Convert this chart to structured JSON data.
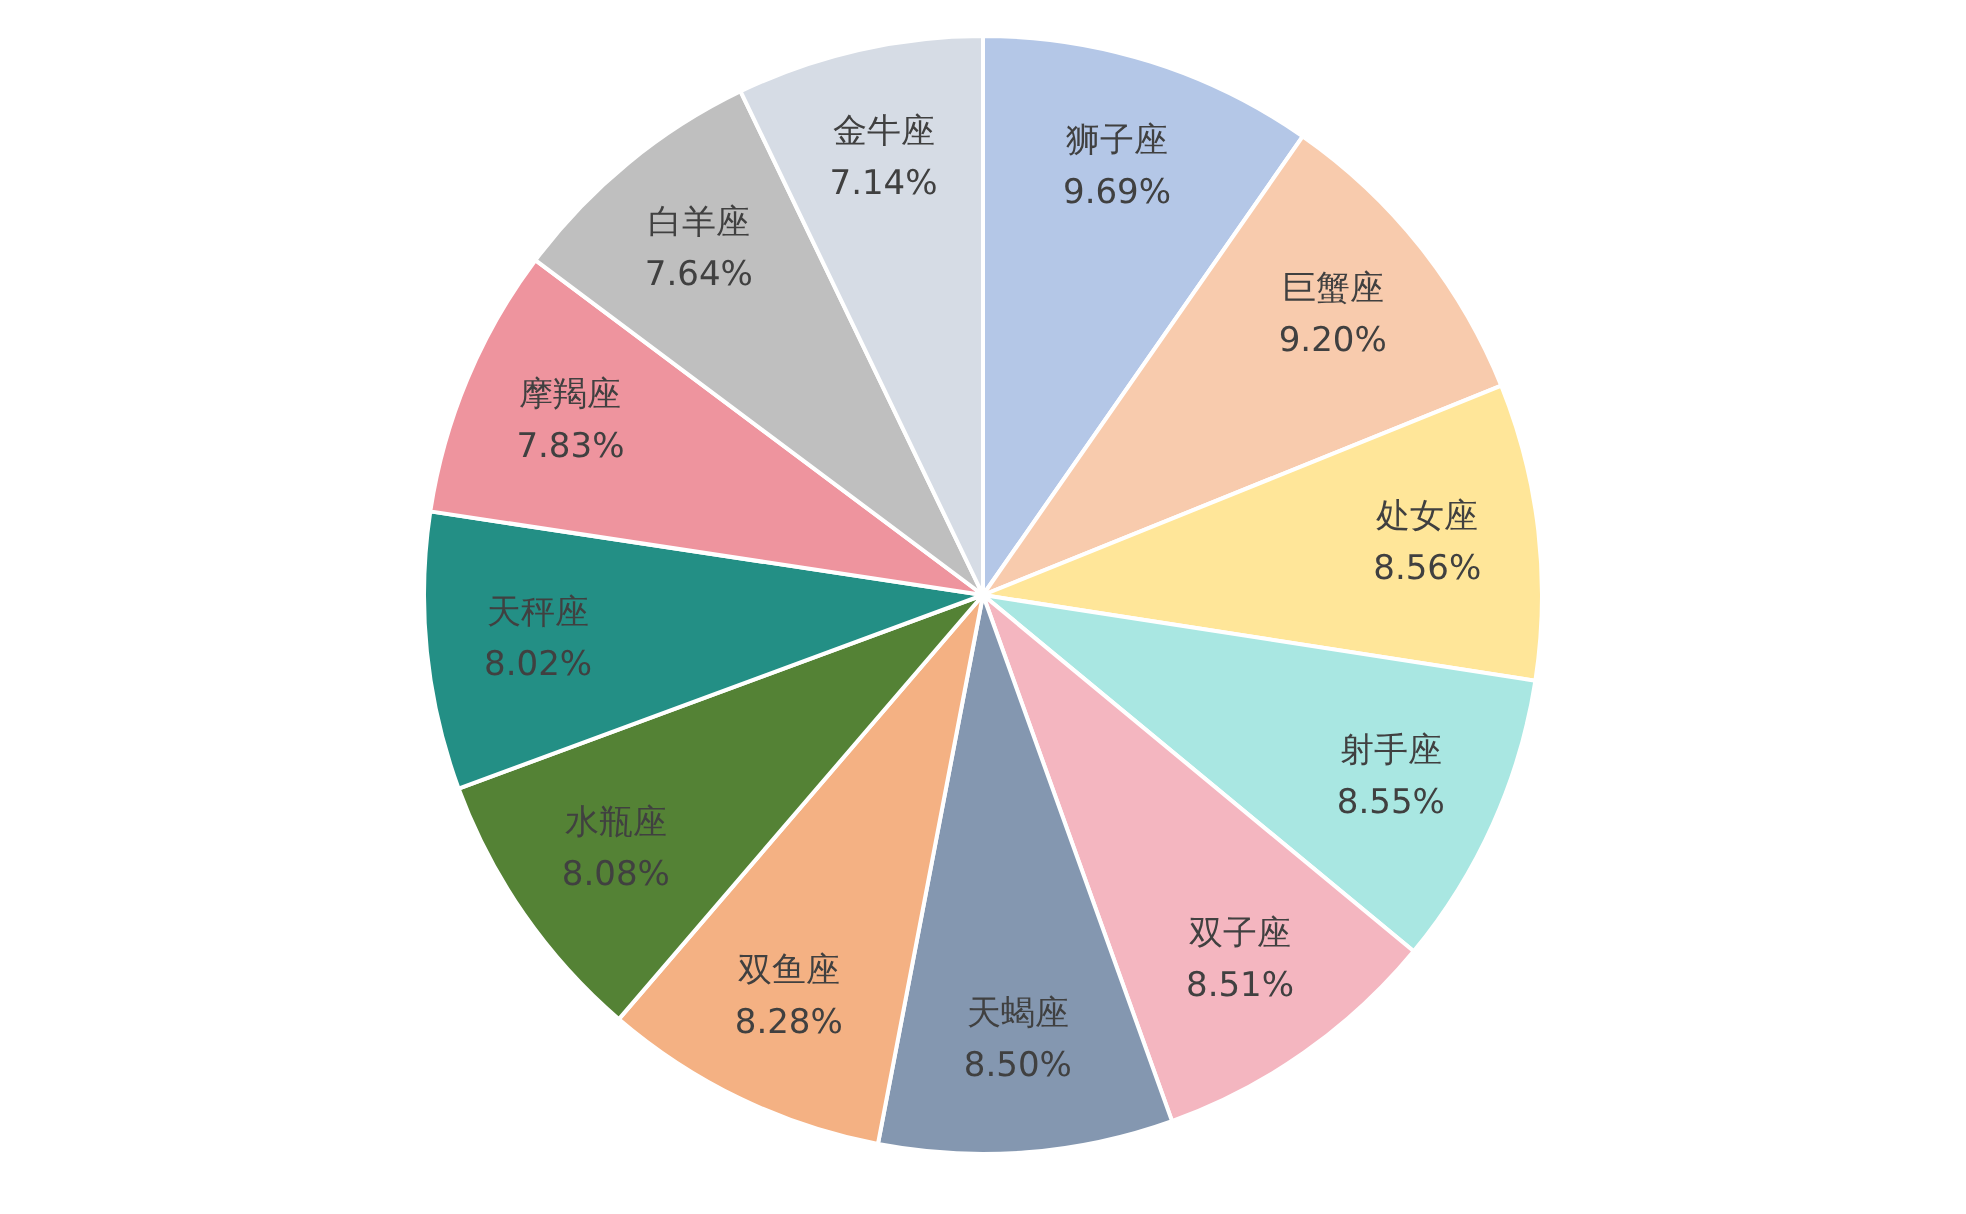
{
  "chart_data": {
    "type": "pie",
    "categories": [
      "狮子座",
      "巨蟹座",
      "处女座",
      "射手座",
      "双子座",
      "天蝎座",
      "双鱼座",
      "水瓶座",
      "天秤座",
      "摩羯座",
      "白羊座",
      "金牛座"
    ],
    "values": [
      9.69,
      9.2,
      8.56,
      8.55,
      8.51,
      8.5,
      8.28,
      8.08,
      8.02,
      7.83,
      7.64,
      7.14
    ],
    "value_labels": [
      "9.69%",
      "9.20%",
      "8.56%",
      "8.55%",
      "8.51%",
      "8.50%",
      "8.28%",
      "8.08%",
      "8.02%",
      "7.83%",
      "7.64%",
      "7.14%"
    ],
    "colors": [
      "#b4c7e7",
      "#f8cbad",
      "#ffe699",
      "#a9e7e2",
      "#f4b6c0",
      "#8497b0",
      "#f4b183",
      "#548235",
      "#238f85",
      "#ee949e",
      "#bfbfbf",
      "#d6dce5"
    ],
    "legend": false
  }
}
